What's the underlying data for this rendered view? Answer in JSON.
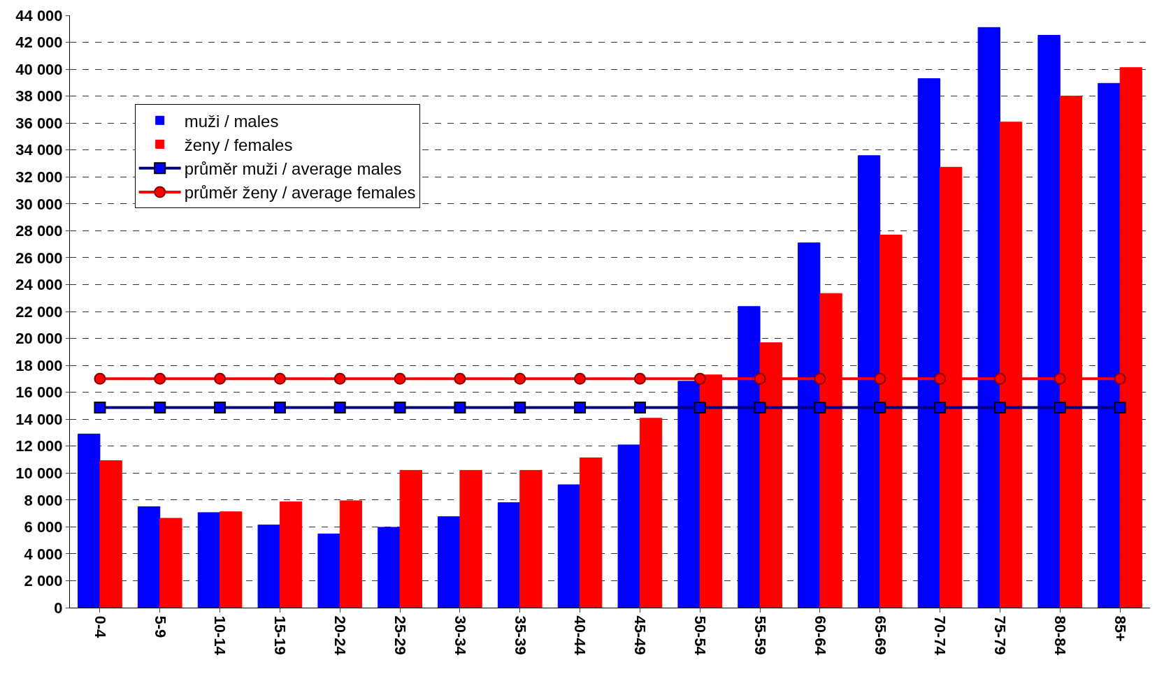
{
  "chart_data": {
    "type": "bar",
    "categories": [
      "0-4",
      "5-9",
      "10-14",
      "15-19",
      "20-24",
      "25-29",
      "30-34",
      "35-39",
      "40-44",
      "45-49",
      "50-54",
      "55-59",
      "60-64",
      "65-69",
      "70-74",
      "75-79",
      "80-84",
      "85+"
    ],
    "series": [
      {
        "name": "muži / males",
        "type": "bar",
        "color": "#0000ff",
        "values": [
          12900,
          7500,
          7060,
          6140,
          5480,
          5970,
          6760,
          7800,
          9130,
          12090,
          16820,
          22370,
          27100,
          33580,
          39300,
          43100,
          42520,
          38950
        ]
      },
      {
        "name": "ženy / females",
        "type": "bar",
        "color": "#ff0000",
        "values": [
          10920,
          6640,
          7120,
          7860,
          7940,
          10200,
          10200,
          10200,
          11130,
          14070,
          17290,
          19680,
          23340,
          27680,
          32720,
          36070,
          38000,
          40120
        ]
      },
      {
        "name": "průměr muži / average males",
        "type": "line",
        "color": "#000080",
        "marker": "square",
        "values": [
          14870,
          14870,
          14870,
          14870,
          14870,
          14870,
          14870,
          14870,
          14870,
          14870,
          14870,
          14870,
          14870,
          14870,
          14870,
          14870,
          14870,
          14870
        ]
      },
      {
        "name": "průměr ženy / average females",
        "type": "line",
        "color": "#ff0000",
        "marker": "circle",
        "values": [
          17000,
          17000,
          17000,
          17000,
          17000,
          17000,
          17000,
          17000,
          17000,
          17000,
          17000,
          17000,
          17000,
          17000,
          17000,
          17000,
          17000,
          17000
        ]
      }
    ],
    "ylim": [
      0,
      44000
    ],
    "yticks": [
      0,
      {
        "value": 2000,
        "label": "2 000"
      },
      {
        "value": 4000,
        "label": "4 000"
      },
      {
        "value": 6000,
        "label": "6 000"
      },
      {
        "value": 8000,
        "label": "8 000"
      },
      {
        "value": 10000,
        "label": "10 000"
      },
      {
        "value": 12000,
        "label": "12 000"
      },
      {
        "value": 14000,
        "label": "14 000"
      },
      {
        "value": 16000,
        "label": "16 000"
      },
      {
        "value": 18000,
        "label": "18 000"
      },
      {
        "value": 20000,
        "label": "20 000"
      },
      {
        "value": 22000,
        "label": "22 000"
      },
      {
        "value": 24000,
        "label": "24 000"
      },
      {
        "value": 26000,
        "label": "26 000"
      },
      {
        "value": 28000,
        "label": "28 000"
      },
      {
        "value": 30000,
        "label": "30 000"
      },
      {
        "value": 32000,
        "label": "32 000"
      },
      {
        "value": 34000,
        "label": "34 000"
      },
      {
        "value": 36000,
        "label": "36 000"
      },
      {
        "value": 38000,
        "label": "38 000"
      },
      {
        "value": 40000,
        "label": "40 000"
      },
      {
        "value": 42000,
        "label": "42 000"
      },
      {
        "value": 44000,
        "label": "44 000"
      }
    ],
    "grid": "y",
    "legend": "top left",
    "line_style": "solid"
  }
}
